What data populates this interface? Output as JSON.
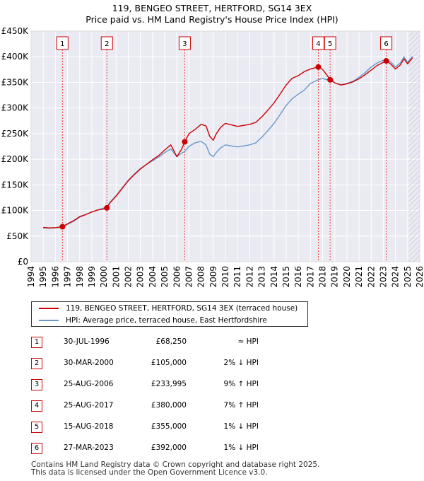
{
  "chart_data": {
    "type": "line",
    "title": "119, BENGEO STREET, HERTFORD, SG14 3EX",
    "subtitle": "Price paid vs. HM Land Registry's House Price Index (HPI)",
    "xlim": [
      1994,
      2026
    ],
    "ylim": [
      0,
      450000
    ],
    "x_ticks": [
      "1994",
      "1995",
      "1996",
      "1997",
      "1998",
      "1999",
      "2000",
      "2001",
      "2002",
      "2003",
      "2004",
      "2005",
      "2006",
      "2007",
      "2008",
      "2009",
      "2010",
      "2011",
      "2012",
      "2013",
      "2014",
      "2015",
      "2016",
      "2017",
      "2018",
      "2019",
      "2020",
      "2021",
      "2022",
      "2023",
      "2024",
      "2025",
      "2026"
    ],
    "y_ticks": [
      {
        "value": 0,
        "label": "£0"
      },
      {
        "value": 50000,
        "label": "£50K"
      },
      {
        "value": 100000,
        "label": "£100K"
      },
      {
        "value": 150000,
        "label": "£150K"
      },
      {
        "value": 200000,
        "label": "£200K"
      },
      {
        "value": 250000,
        "label": "£250K"
      },
      {
        "value": 300000,
        "label": "£300K"
      },
      {
        "value": 350000,
        "label": "£350K"
      },
      {
        "value": 400000,
        "label": "£400K"
      },
      {
        "value": 450000,
        "label": "£450K"
      }
    ],
    "grid": true,
    "series": [
      {
        "name": "119, BENGEO STREET, HERTFORD, SG14 3EX (terraced house)",
        "color": "#cc0000",
        "x": [
          1995.0,
          1995.5,
          1996.0,
          1996.58,
          1997.0,
          1997.5,
          1998.0,
          1998.5,
          1999.0,
          1999.5,
          2000.0,
          2000.24,
          2000.5,
          2001.0,
          2001.5,
          2002.0,
          2002.5,
          2003.0,
          2003.5,
          2004.0,
          2004.5,
          2005.0,
          2005.5,
          2006.0,
          2006.4,
          2006.65,
          2007.0,
          2007.5,
          2008.0,
          2008.4,
          2008.7,
          2009.0,
          2009.2,
          2009.6,
          2010.0,
          2010.5,
          2011.0,
          2011.5,
          2012.0,
          2012.5,
          2013.0,
          2013.5,
          2014.0,
          2014.5,
          2015.0,
          2015.5,
          2016.0,
          2016.5,
          2017.0,
          2017.65,
          2018.0,
          2018.3,
          2018.62,
          2019.0,
          2019.5,
          2020.0,
          2020.5,
          2021.0,
          2021.5,
          2022.0,
          2022.5,
          2023.0,
          2023.24,
          2023.6,
          2024.0,
          2024.4,
          2024.7,
          2025.0,
          2025.4
        ],
        "y": [
          67000,
          66000,
          66500,
          68250,
          74000,
          80000,
          88000,
          92000,
          97000,
          101000,
          103000,
          105000,
          115000,
          128000,
          143000,
          158000,
          170000,
          181000,
          190000,
          199000,
          207000,
          218000,
          228000,
          205000,
          220000,
          233995,
          250000,
          258000,
          268000,
          265000,
          245000,
          237000,
          248000,
          262000,
          270000,
          267000,
          264000,
          266000,
          268000,
          272000,
          283000,
          296000,
          310000,
          327000,
          345000,
          358000,
          363000,
          371000,
          376000,
          380000,
          375000,
          366000,
          355000,
          349000,
          345000,
          347000,
          351000,
          357000,
          365000,
          374000,
          383000,
          389000,
          392000,
          386000,
          376000,
          384000,
          396000,
          386000,
          398000
        ]
      },
      {
        "name": "HPI: Average price, terraced house, East Hertfordshire",
        "color": "#6699cc",
        "x": [
          1995.0,
          1995.5,
          1996.0,
          1996.58,
          1997.0,
          1997.5,
          1998.0,
          1998.5,
          1999.0,
          1999.5,
          2000.0,
          2000.24,
          2000.5,
          2001.0,
          2001.5,
          2002.0,
          2002.5,
          2003.0,
          2003.5,
          2004.0,
          2004.5,
          2005.0,
          2005.5,
          2006.0,
          2006.4,
          2006.65,
          2007.0,
          2007.5,
          2008.0,
          2008.4,
          2008.7,
          2009.0,
          2009.2,
          2009.6,
          2010.0,
          2010.5,
          2011.0,
          2011.5,
          2012.0,
          2012.5,
          2013.0,
          2013.5,
          2014.0,
          2014.5,
          2015.0,
          2015.5,
          2016.0,
          2016.5,
          2017.0,
          2017.65,
          2018.0,
          2018.3,
          2018.62,
          2019.0,
          2019.5,
          2020.0,
          2020.5,
          2021.0,
          2021.5,
          2022.0,
          2022.5,
          2023.0,
          2023.24,
          2023.6,
          2024.0,
          2024.4,
          2024.7,
          2025.0,
          2025.4
        ],
        "y": [
          66000,
          65500,
          66000,
          68000,
          73000,
          79000,
          87000,
          92000,
          97000,
          101000,
          105000,
          107000,
          116000,
          129000,
          144000,
          159000,
          171000,
          182000,
          190000,
          197000,
          204000,
          213000,
          220000,
          205000,
          212000,
          215000,
          225000,
          232000,
          235000,
          228000,
          210000,
          205000,
          212000,
          222000,
          228000,
          226000,
          224000,
          226000,
          228000,
          232000,
          243000,
          256000,
          270000,
          287000,
          305000,
          318000,
          327000,
          335000,
          348000,
          355000,
          358000,
          355000,
          359000,
          349000,
          345000,
          348000,
          352000,
          360000,
          369000,
          380000,
          388000,
          393000,
          396000,
          390000,
          380000,
          388000,
          400000,
          389000,
          401000
        ]
      }
    ],
    "sales": [
      {
        "n": "1",
        "x": 1996.58,
        "price": 68250
      },
      {
        "n": "2",
        "x": 2000.24,
        "price": 105000
      },
      {
        "n": "3",
        "x": 2006.65,
        "price": 233995
      },
      {
        "n": "4",
        "x": 2017.65,
        "price": 380000
      },
      {
        "n": "5",
        "x": 2018.62,
        "price": 355000
      },
      {
        "n": "6",
        "x": 2023.24,
        "price": 392000
      }
    ]
  },
  "legend": {
    "property_label": "119, BENGEO STREET, HERTFORD, SG14 3EX (terraced house)",
    "hpi_label": "HPI: Average price, terraced house, East Hertfordshire",
    "property_color": "#cc0000",
    "hpi_color": "#6699cc"
  },
  "table": [
    {
      "n": "1",
      "date": "30-JUL-1996",
      "price": "£68,250",
      "hpi": "≈ HPI"
    },
    {
      "n": "2",
      "date": "30-MAR-2000",
      "price": "£105,000",
      "hpi": "2% ↓ HPI"
    },
    {
      "n": "3",
      "date": "25-AUG-2006",
      "price": "£233,995",
      "hpi": "9% ↑ HPI"
    },
    {
      "n": "4",
      "date": "25-AUG-2017",
      "price": "£380,000",
      "hpi": "7% ↑ HPI"
    },
    {
      "n": "5",
      "date": "15-AUG-2018",
      "price": "£355,000",
      "hpi": "1% ↓ HPI"
    },
    {
      "n": "6",
      "date": "27-MAR-2023",
      "price": "£392,000",
      "hpi": "1% ↓ HPI"
    }
  ],
  "footer": {
    "line1": "Contains HM Land Registry data © Crown copyright and database right 2025.",
    "line2": "This data is licensed under the Open Government Licence v3.0."
  }
}
